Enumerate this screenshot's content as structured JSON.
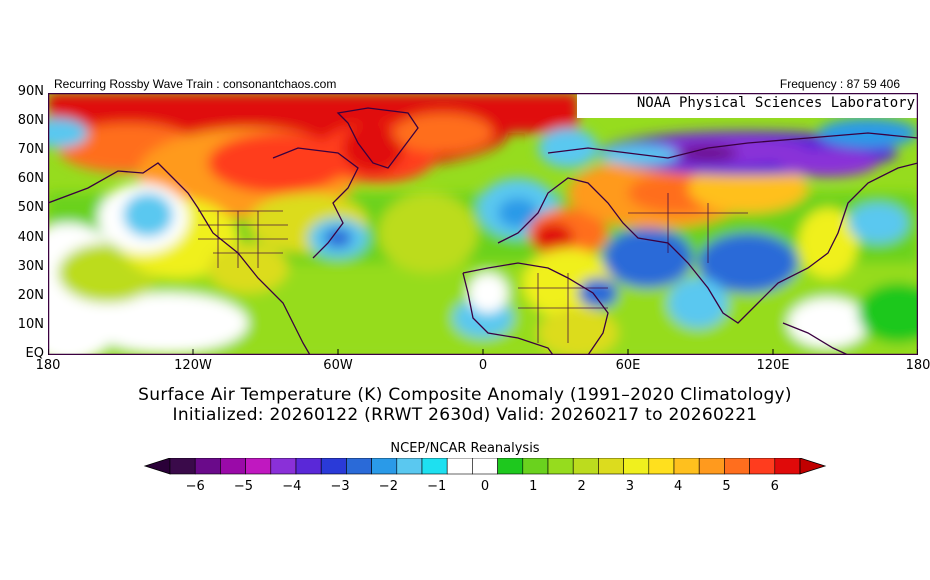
{
  "header": {
    "left": "Recurring Rossby Wave Train : consonantchaos.com",
    "right": "Frequency : 87 59 406"
  },
  "map": {
    "watermark": "NOAA Physical Sciences Laboratory",
    "lat_labels": [
      "90N",
      "80N",
      "70N",
      "60N",
      "50N",
      "40N",
      "30N",
      "20N",
      "10N",
      "EQ"
    ],
    "lon_labels": [
      "180",
      "120W",
      "60W",
      "0",
      "60E",
      "120E",
      "180"
    ]
  },
  "titles": {
    "line1": "Surface Air Temperature (K) Composite Anomaly (1991–2020 Climatology)",
    "line2": "Initialized: 20260122 (RRWT 2630d) Valid: 20260217 to 20260221"
  },
  "source": "NCEP/NCAR Reanalysis",
  "colorbar": {
    "labels": [
      "−6",
      "−5",
      "−4",
      "−3",
      "−2",
      "−1",
      "0",
      "1",
      "2",
      "3",
      "4",
      "5",
      "6"
    ],
    "colors": [
      "#3a0a4a",
      "#6a0a8a",
      "#9a0aa8",
      "#c018c0",
      "#8a30d8",
      "#5a28d8",
      "#2a3ad8",
      "#2a6ad8",
      "#2a9ae8",
      "#5ac8f0",
      "#1ee0f0",
      "#ffffff",
      "#ffffff",
      "#1ec81e",
      "#6ad21e",
      "#96dc1e",
      "#bcdc1e",
      "#dcdc1e",
      "#f0f01e",
      "#ffe01e",
      "#ffc01e",
      "#ff9a1e",
      "#ff6e1e",
      "#ff3c1e",
      "#e00a0a"
    ],
    "left_color": "#2a0038",
    "right_color": "#c00000"
  },
  "colors": {
    "land_outline": "#3a0040",
    "frame": "#3a0040"
  }
}
